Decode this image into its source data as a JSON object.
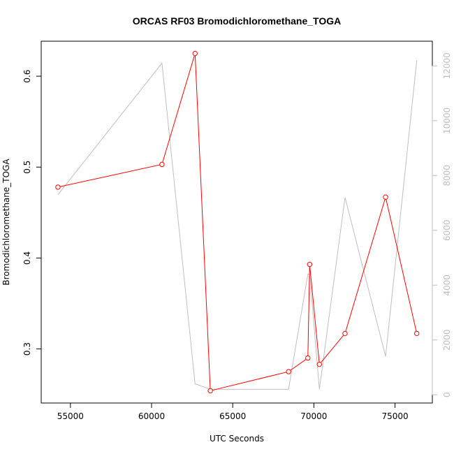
{
  "chart_data": {
    "type": "line",
    "title": "ORCAS RF03 Bromodichloromethane_TOGA",
    "xlabel": "UTC Seconds",
    "ylabel": "Bromodichloromethane_TOGA",
    "xlim": [
      53200,
      77300
    ],
    "ylim": [
      0.2405,
      0.6385
    ],
    "y2lim": [
      -300,
      12900
    ],
    "x_ticks": [
      55000,
      60000,
      65000,
      70000,
      75000
    ],
    "y_ticks": [
      0.3,
      0.4,
      0.5,
      0.6
    ],
    "y2_ticks": [
      0,
      2000,
      4000,
      6000,
      8000,
      10000,
      12000
    ],
    "grid": false,
    "colors": {
      "primary_series": "#ff0000",
      "secondary_series": "#bebebe"
    },
    "series": [
      {
        "axis": "left",
        "style": "line+points",
        "x": [
          54230,
          60640,
          62680,
          63620,
          68440,
          69630,
          69740,
          70340,
          71920,
          74420,
          76340
        ],
        "y": [
          0.478,
          0.503,
          0.625,
          0.254,
          0.275,
          0.29,
          0.393,
          0.283,
          0.317,
          0.467,
          0.317
        ]
      },
      {
        "axis": "right",
        "style": "line",
        "x": [
          54230,
          60640,
          62680,
          63620,
          68440,
          69630,
          69740,
          70340,
          71920,
          74420,
          76340
        ],
        "y": [
          7300,
          12100,
          400,
          200,
          200,
          4400,
          4400,
          200,
          7200,
          1400,
          12200
        ]
      }
    ]
  }
}
